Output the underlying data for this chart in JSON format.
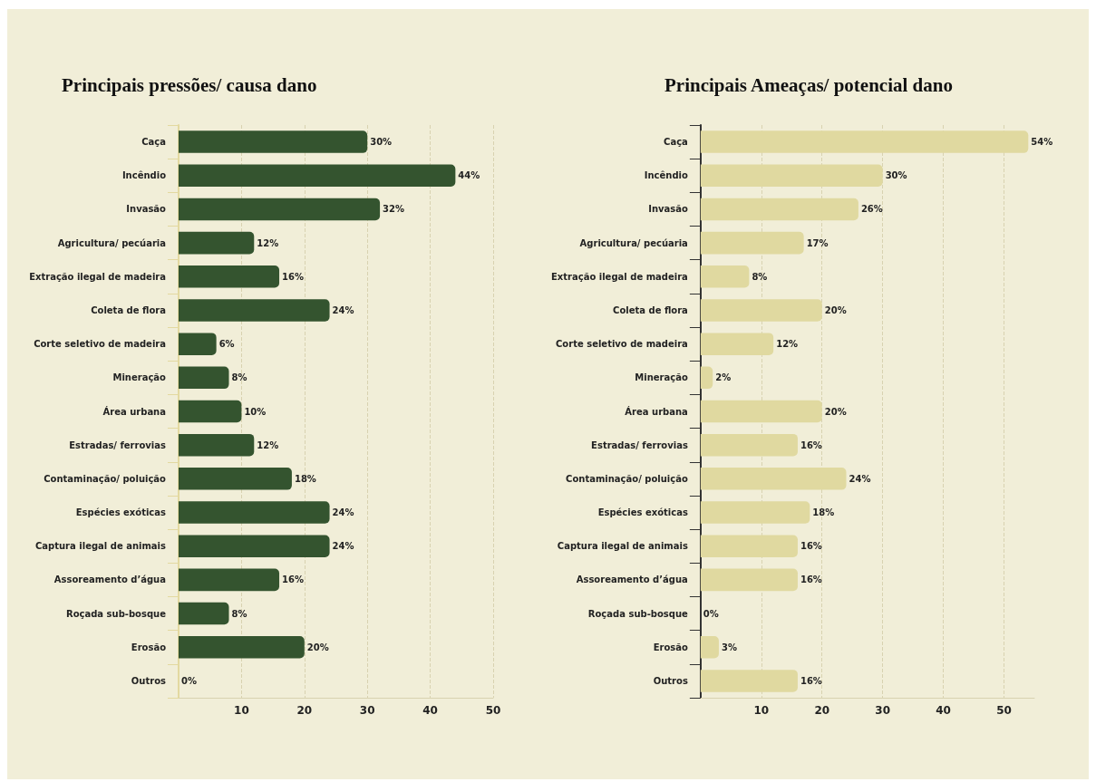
{
  "chart_data": [
    {
      "type": "bar",
      "orientation": "horizontal",
      "title": "Principais pressões/ causa dano",
      "categories": [
        "Caça",
        "Incêndio",
        "Invasão",
        "Agricultura/ pecúaria",
        "Extração ilegal de madeira",
        "Coleta de flora",
        "Corte seletivo de madeira",
        "Mineração",
        "Área urbana",
        "Estradas/ ferrovias",
        "Contaminação/ poluição",
        "Espécies exóticas",
        "Captura ilegal de animais",
        "Assoreamento d’água",
        "Roçada sub-bosque",
        "Erosão",
        "Outros"
      ],
      "values": [
        30,
        44,
        32,
        12,
        16,
        24,
        6,
        8,
        10,
        12,
        18,
        24,
        24,
        16,
        8,
        20,
        0
      ],
      "value_labels": [
        "30%",
        "44%",
        "32%",
        "12%",
        "16%",
        "24%",
        "6%",
        "8%",
        "10%",
        "12%",
        "18%",
        "24%",
        "24%",
        "16%",
        "8%",
        "20%",
        "0%"
      ],
      "color": "#34542f",
      "xlim": [
        0,
        50
      ],
      "xticks": [
        10,
        20,
        30,
        40,
        50
      ],
      "grid": "x"
    },
    {
      "type": "bar",
      "orientation": "horizontal",
      "title": "Principais Ameaças/ potencial dano",
      "categories": [
        "Caça",
        "Incêndio",
        "Invasão",
        "Agricultura/ pecúaria",
        "Extração ilegal de madeira",
        "Coleta de flora",
        "Corte seletivo de madeira",
        "Mineração",
        "Área urbana",
        "Estradas/ ferrovias",
        "Contaminação/ poluição",
        "Espécies exóticas",
        "Captura ilegal de animais",
        "Assoreamento d’água",
        "Roçada sub-bosque",
        "Erosão",
        "Outros"
      ],
      "values": [
        54,
        30,
        26,
        17,
        8,
        20,
        12,
        2,
        20,
        16,
        24,
        18,
        16,
        16,
        0,
        3,
        16
      ],
      "value_labels": [
        "54%",
        "30%",
        "26%",
        "17%",
        "8%",
        "20%",
        "12%",
        "2%",
        "20%",
        "16%",
        "24%",
        "18%",
        "16%",
        "16%",
        "0%",
        "3%",
        "16%"
      ],
      "color": "#e0d9a0",
      "xlim": [
        0,
        55
      ],
      "xticks": [
        10,
        20,
        30,
        40,
        50
      ],
      "grid": "x"
    }
  ]
}
